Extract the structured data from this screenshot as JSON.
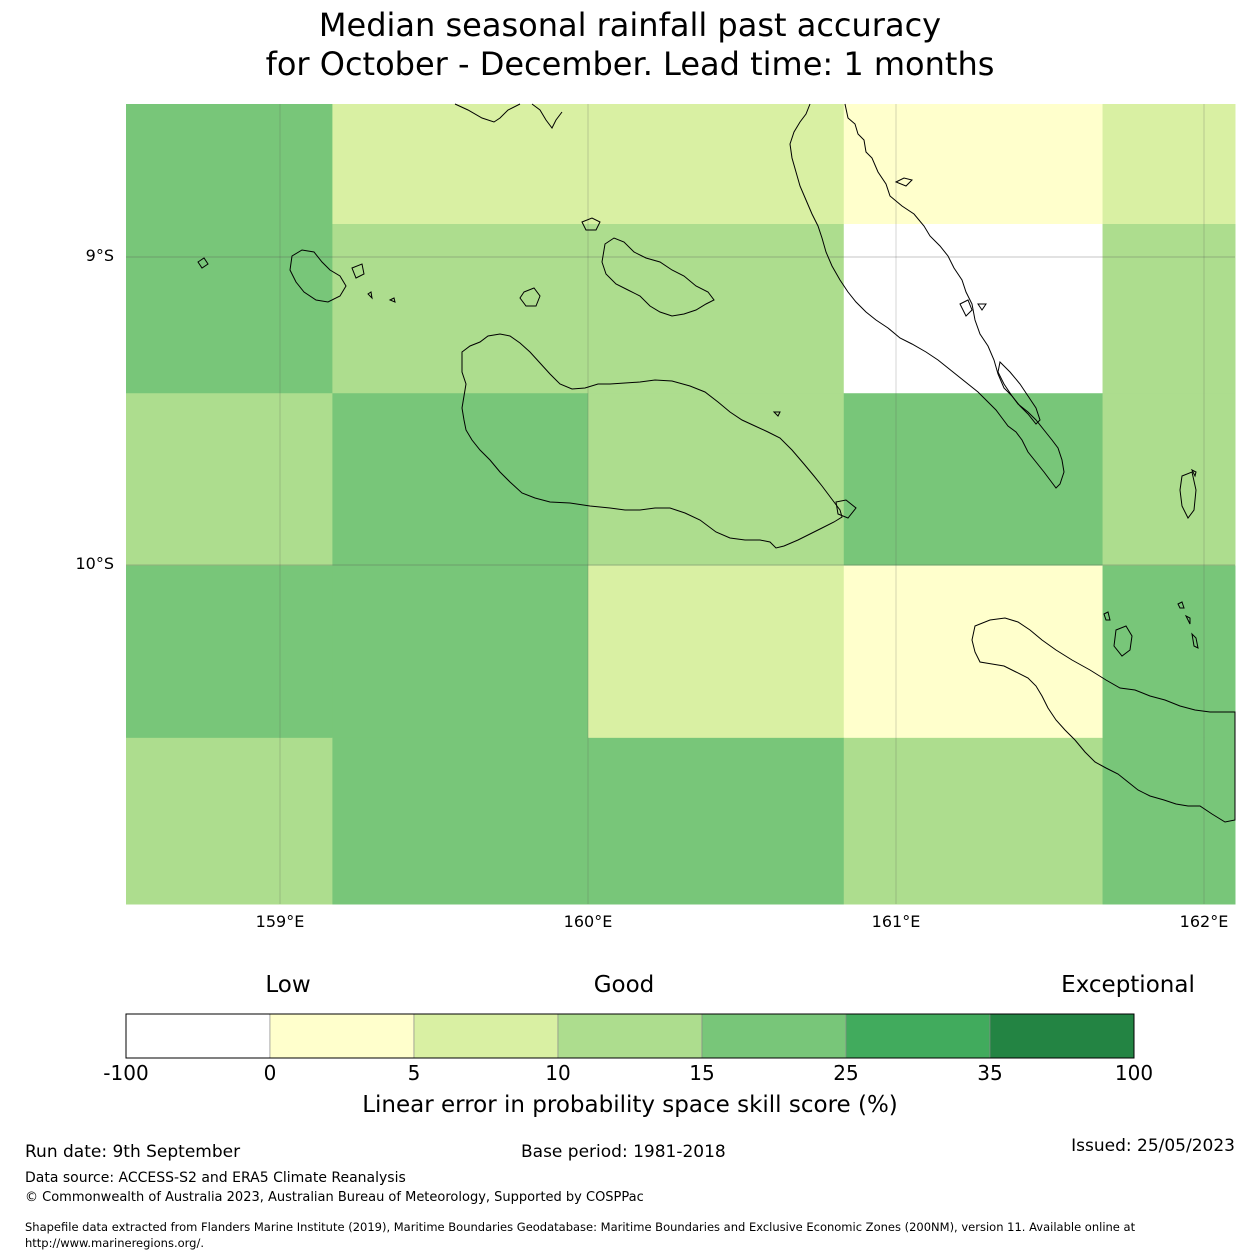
{
  "title": {
    "line1": "Median seasonal rainfall past accuracy",
    "line2": "for October - December. Lead time: 1 months"
  },
  "map": {
    "lat_labels": [
      "9°S",
      "10°S"
    ],
    "lon_labels": [
      "159°E",
      "160°E",
      "161°E",
      "162°E"
    ],
    "grid_lon": [
      158.5,
      159.17,
      160.0,
      160.83,
      161.67,
      162.1
    ],
    "grid_lat": [
      -8.45,
      -8.84,
      -9.39,
      -9.95,
      -10.51,
      -11.05
    ],
    "cells_bin": [
      [
        4,
        2,
        2,
        1,
        2
      ],
      [
        4,
        3,
        3,
        0,
        3
      ],
      [
        3,
        4,
        3,
        4,
        3
      ],
      [
        4,
        4,
        2,
        1,
        4
      ],
      [
        3,
        4,
        4,
        3,
        4
      ]
    ]
  },
  "legend": {
    "categories": [
      "Low",
      "Good",
      "Exceptional"
    ],
    "ticks": [
      "-100",
      "0",
      "5",
      "10",
      "15",
      "25",
      "35",
      "100"
    ],
    "colors": [
      "#ffffff",
      "#ffffcc",
      "#d9f0a3",
      "#addd8e",
      "#78c679",
      "#41ab5d",
      "#238443"
    ],
    "title": "Linear error in probability space skill score (%)"
  },
  "footer": {
    "run_date": "Run date: 9th September",
    "base_period": "Base period: 1981-2018",
    "issued": "Issued: 25/05/2023",
    "data_source": "Data source: ACCESS-S2 and ERA5 Climate Reanalysis",
    "copyright": "© Commonwealth of Australia 2023, Australian Bureau of Meteorology, Supported by COSPPac",
    "shapefile_line1": "Shapefile data extracted from Flanders Marine Institute (2019), Maritime Boundaries Geodatabase: Maritime Boundaries and Exclusive Economic Zones (200NM), version 11. Available online at",
    "shapefile_line2": "http://www.marineregions.org/."
  }
}
